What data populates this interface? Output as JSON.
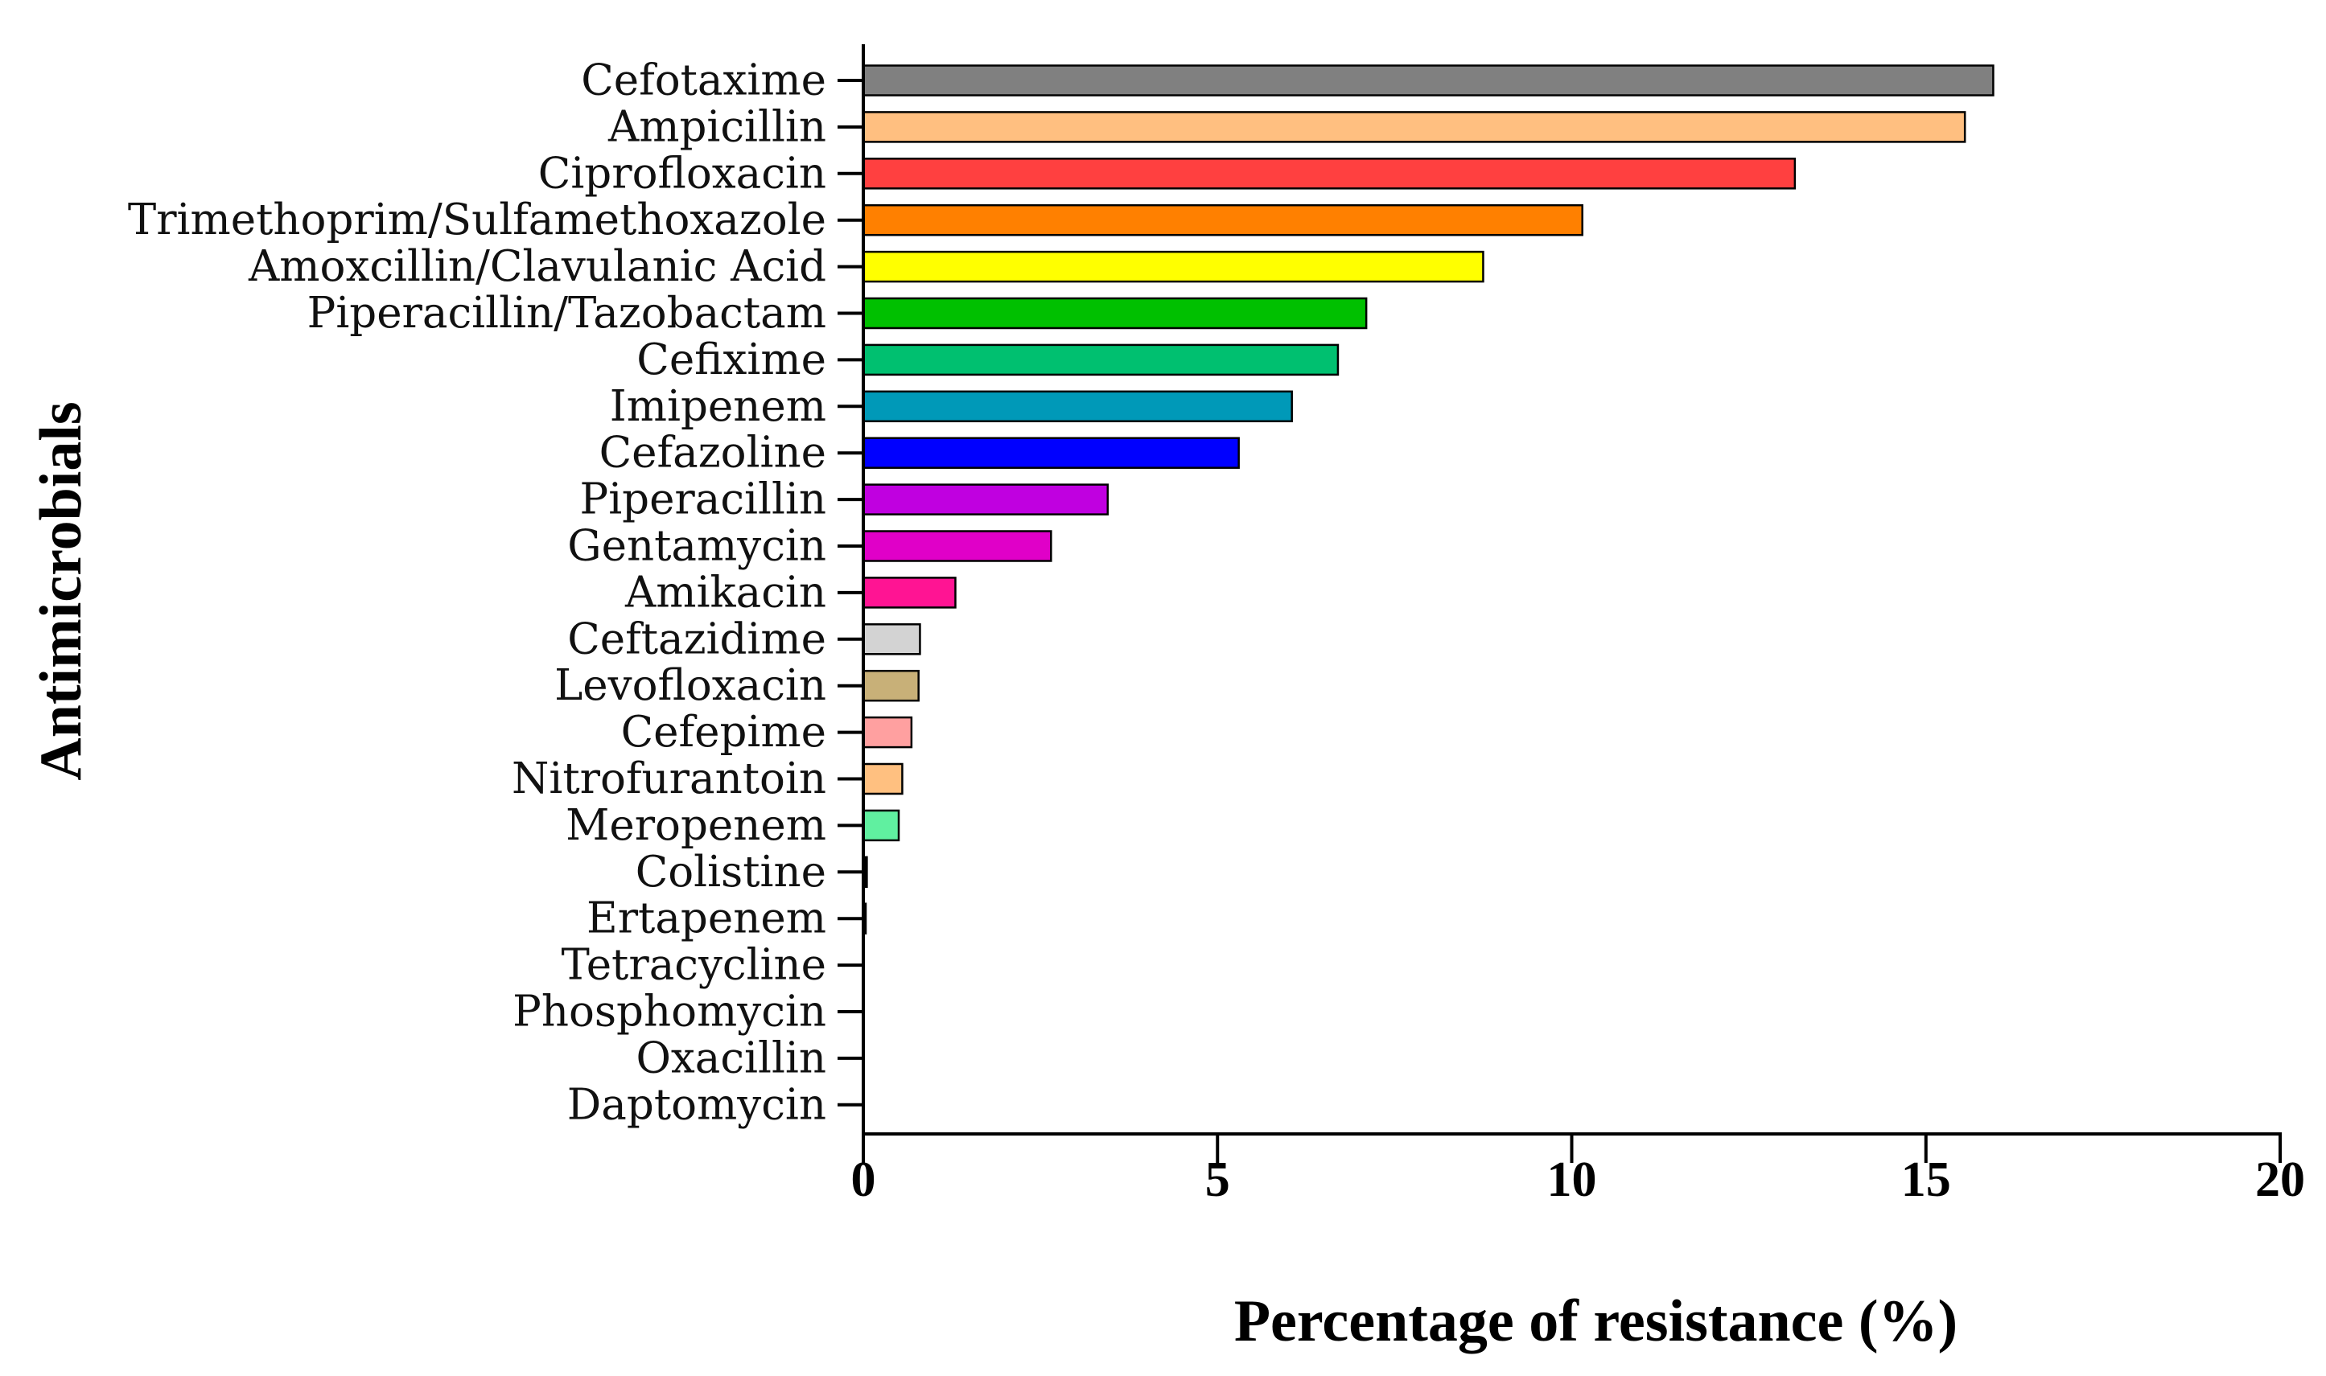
{
  "chart_data": {
    "type": "bar",
    "orientation": "horizontal",
    "title": "",
    "xlabel": "Percentage of resistance (%)",
    "ylabel": "Antimicrobials",
    "xlim": [
      0,
      20
    ],
    "xticks": [
      "0",
      "5",
      "10",
      "15",
      "20"
    ],
    "xtick_values": [
      0,
      5,
      10,
      15,
      20
    ],
    "grid": false,
    "legend": "none",
    "categories": [
      "Cefotaxime",
      "Ampicillin",
      "Ciprofloxacin",
      "Trimethoprim/Sulfamethoxazole",
      "Amoxcillin/Clavulanic Acid",
      "Piperacillin/Tazobactam",
      "Cefixime",
      "Imipenem",
      "Cefazoline",
      "Piperacillin",
      "Gentamycin",
      "Amikacin",
      "Ceftazidime",
      "Levofloxacin",
      "Cefepime",
      "Nitrofurantoin",
      "Meropenem",
      "Colistine",
      "Ertapenem",
      "Tetracycline",
      "Phosphomycin",
      "Oxacillin",
      "Daptomycin"
    ],
    "values": [
      15.95,
      15.55,
      13.15,
      10.15,
      8.75,
      7.1,
      6.7,
      6.05,
      5.3,
      3.45,
      2.65,
      1.3,
      0.8,
      0.78,
      0.68,
      0.55,
      0.5,
      0.05,
      0.03,
      0,
      0,
      0,
      0
    ],
    "colors": [
      "#808080",
      "#FFBF80",
      "#FF4040",
      "#FF8000",
      "#FFFF00",
      "#00C000",
      "#00C070",
      "#0099B8",
      "#0000FF",
      "#C000E0",
      "#E000C8",
      "#FF1493",
      "#D3D3D3",
      "#C8B078",
      "#FFA0A0",
      "#FFC080",
      "#60F0A0",
      "#000000",
      "#000000",
      "#000000",
      "#000000",
      "#000000",
      "#000000"
    ]
  }
}
